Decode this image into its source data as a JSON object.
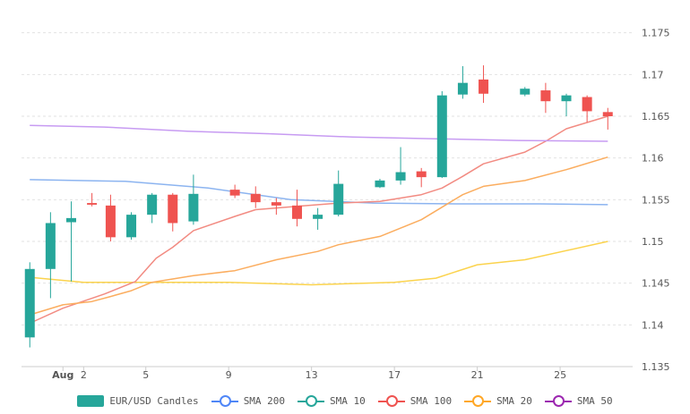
{
  "chart_data": {
    "type": "candlestick",
    "y_ticks": [
      "1.175",
      "1.17",
      "1.165",
      "1.16",
      "1.155",
      "1.15",
      "1.145",
      "1.14",
      "1.135"
    ],
    "ylim": [
      1.135,
      1.177
    ],
    "x_ticks": [
      {
        "day": 1,
        "label": "Aug"
      },
      {
        "day": 2,
        "label": "2"
      },
      {
        "day": 5,
        "label": "5"
      },
      {
        "day": 9,
        "label": "9"
      },
      {
        "day": 13,
        "label": "13"
      },
      {
        "day": 17,
        "label": "17"
      },
      {
        "day": 21,
        "label": "21"
      },
      {
        "day": 25,
        "label": "25"
      }
    ],
    "xlim": [
      -1,
      28.5
    ],
    "grid": true,
    "legend_position": "bottom",
    "candles": [
      {
        "day": -0.6,
        "o": 1.1385,
        "h": 1.1475,
        "l": 1.1373,
        "c": 1.1467
      },
      {
        "day": 0.4,
        "o": 1.1467,
        "h": 1.1535,
        "l": 1.1432,
        "c": 1.1522
      },
      {
        "day": 1.4,
        "o": 1.1523,
        "h": 1.1548,
        "l": 1.1452,
        "c": 1.1528
      },
      {
        "day": 2.4,
        "o": 1.1546,
        "h": 1.1558,
        "l": 1.1542,
        "c": 1.1544
      },
      {
        "day": 3.3,
        "o": 1.1543,
        "h": 1.1556,
        "l": 1.15,
        "c": 1.1505
      },
      {
        "day": 4.3,
        "o": 1.1505,
        "h": 1.1535,
        "l": 1.1502,
        "c": 1.1532
      },
      {
        "day": 5.3,
        "o": 1.1532,
        "h": 1.1558,
        "l": 1.1522,
        "c": 1.1556
      },
      {
        "day": 6.3,
        "o": 1.1556,
        "h": 1.1558,
        "l": 1.1512,
        "c": 1.1522
      },
      {
        "day": 7.3,
        "o": 1.1524,
        "h": 1.158,
        "l": 1.152,
        "c": 1.1557
      },
      {
        "day": 9.3,
        "o": 1.1562,
        "h": 1.1568,
        "l": 1.1552,
        "c": 1.1555
      },
      {
        "day": 10.3,
        "o": 1.1557,
        "h": 1.1566,
        "l": 1.154,
        "c": 1.1547
      },
      {
        "day": 11.3,
        "o": 1.1547,
        "h": 1.1552,
        "l": 1.1532,
        "c": 1.1543
      },
      {
        "day": 12.3,
        "o": 1.1543,
        "h": 1.1562,
        "l": 1.1518,
        "c": 1.1527
      },
      {
        "day": 13.3,
        "o": 1.1527,
        "h": 1.154,
        "l": 1.1514,
        "c": 1.1532
      },
      {
        "day": 14.3,
        "o": 1.1532,
        "h": 1.1585,
        "l": 1.153,
        "c": 1.1569
      },
      {
        "day": 16.3,
        "o": 1.1565,
        "h": 1.1575,
        "l": 1.1564,
        "c": 1.1573
      },
      {
        "day": 17.3,
        "o": 1.1573,
        "h": 1.1613,
        "l": 1.1568,
        "c": 1.1583
      },
      {
        "day": 18.3,
        "o": 1.1584,
        "h": 1.1588,
        "l": 1.1565,
        "c": 1.1577
      },
      {
        "day": 19.3,
        "o": 1.1577,
        "h": 1.168,
        "l": 1.1576,
        "c": 1.1675
      },
      {
        "day": 20.3,
        "o": 1.1676,
        "h": 1.171,
        "l": 1.1671,
        "c": 1.169
      },
      {
        "day": 21.3,
        "o": 1.1694,
        "h": 1.1711,
        "l": 1.1666,
        "c": 1.1677
      },
      {
        "day": 23.3,
        "o": 1.1676,
        "h": 1.1685,
        "l": 1.1674,
        "c": 1.1683
      },
      {
        "day": 24.3,
        "o": 1.1681,
        "h": 1.169,
        "l": 1.1654,
        "c": 1.1668
      },
      {
        "day": 25.3,
        "o": 1.1668,
        "h": 1.1677,
        "l": 1.165,
        "c": 1.1675
      },
      {
        "day": 26.3,
        "o": 1.1673,
        "h": 1.1675,
        "l": 1.1643,
        "c": 1.1656
      },
      {
        "day": 27.3,
        "o": 1.1655,
        "h": 1.166,
        "l": 1.1634,
        "c": 1.165
      }
    ],
    "series": [
      {
        "name": "SMA 200",
        "color": "#8cb4f0",
        "style": "line",
        "x": [
          -0.6,
          4,
          8,
          12,
          16,
          20,
          24,
          27.3
        ],
        "y": [
          1.1574,
          1.1572,
          1.1564,
          1.155,
          1.1546,
          1.1545,
          1.1545,
          1.1544
        ]
      },
      {
        "name": "SMA 10",
        "color": "#fbd34d",
        "style": "line",
        "x": [
          -0.6,
          2,
          5,
          9,
          13,
          17,
          19,
          21,
          23.3,
          27.3
        ],
        "y": [
          1.1457,
          1.1451,
          1.1451,
          1.1451,
          1.1448,
          1.1451,
          1.1456,
          1.1472,
          1.1478,
          1.15
        ]
      },
      {
        "name": "SMA 100",
        "color": "#f28b82",
        "style": "line",
        "x": [
          -0.6,
          1,
          3,
          4.5,
          5.5,
          6.3,
          7.3,
          9.3,
          10.3,
          12.3,
          14.3,
          16.3,
          18.3,
          19.3,
          20.3,
          21.3,
          23.3,
          24.3,
          25.3,
          27.3
        ],
        "y": [
          1.1402,
          1.142,
          1.1437,
          1.1452,
          1.148,
          1.1493,
          1.1513,
          1.153,
          1.1538,
          1.1542,
          1.1546,
          1.1548,
          1.1556,
          1.1564,
          1.1578,
          1.1593,
          1.1607,
          1.162,
          1.1635,
          1.165
        ]
      },
      {
        "name": "SMA 20",
        "color": "#fbad5f",
        "style": "line",
        "x": [
          -0.6,
          1,
          2.4,
          3.3,
          4.3,
          5.3,
          7.3,
          9.3,
          11.3,
          13.3,
          14.3,
          16.3,
          17.3,
          18.3,
          19.3,
          20.3,
          21.3,
          23.3,
          25.3,
          27.3
        ],
        "y": [
          1.1412,
          1.1424,
          1.1428,
          1.1434,
          1.1441,
          1.1451,
          1.1459,
          1.1465,
          1.1478,
          1.1488,
          1.1496,
          1.1506,
          1.1516,
          1.1526,
          1.1541,
          1.1556,
          1.1566,
          1.1573,
          1.1586,
          1.1601
        ]
      },
      {
        "name": "SMA 50",
        "color": "#c79bf2",
        "style": "line",
        "x": [
          -0.6,
          3,
          7,
          11,
          15,
          19,
          23,
          27.3
        ],
        "y": [
          1.1639,
          1.1637,
          1.1632,
          1.1629,
          1.1625,
          1.1623,
          1.1621,
          1.162
        ]
      }
    ]
  },
  "legend": [
    {
      "label": "EUR/USD Candles",
      "kind": "rect",
      "color": "#26a69a"
    },
    {
      "label": "SMA 200",
      "kind": "line",
      "color": "#4f86f7"
    },
    {
      "label": "SMA 10",
      "kind": "line",
      "color": "#26a69a"
    },
    {
      "label": "SMA 100",
      "kind": "line",
      "color": "#ef5350"
    },
    {
      "label": "SMA 20",
      "kind": "line",
      "color": "#ffa726"
    },
    {
      "label": "SMA 50",
      "kind": "line",
      "color": "#9c27b0"
    }
  ],
  "colors": {
    "up": "#26a69a",
    "down": "#ef5350",
    "grid": "#e2e2e2",
    "axis": "#cccccc"
  }
}
